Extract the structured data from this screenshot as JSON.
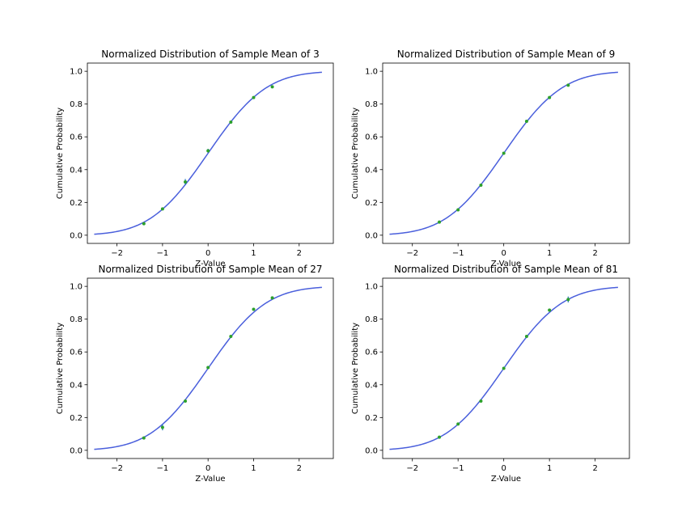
{
  "chart_data": [
    {
      "type": "line",
      "title": "Normalized Distribution of Sample Mean of 3",
      "xlabel": "Z-Value",
      "ylabel": "Cumulative Probability",
      "xlim": [
        -2.65,
        2.75
      ],
      "ylim": [
        -0.05,
        1.05
      ],
      "xticks": [
        -2,
        -1,
        0,
        1,
        2
      ],
      "xtick_labels": [
        "−2",
        "−1",
        "0",
        "1",
        "2"
      ],
      "yticks": [
        0.0,
        0.2,
        0.4,
        0.6,
        0.8,
        1.0
      ],
      "ytick_labels": [
        "0.0",
        "0.2",
        "0.4",
        "0.6",
        "0.8",
        "1.0"
      ],
      "grid": false,
      "series": [
        {
          "kind": "cdf-curve",
          "x_range": [
            -2.5,
            2.5
          ]
        },
        {
          "kind": "points",
          "x": [
            -1.41,
            -1.0,
            -0.5,
            0.0,
            0.5,
            1.0,
            1.41
          ],
          "y": [
            0.07,
            0.16,
            0.325,
            0.515,
            0.69,
            0.84,
            0.905
          ],
          "err": [
            0.008,
            0.005,
            0.018,
            0.012,
            0.005,
            0.006,
            0.005
          ]
        }
      ]
    },
    {
      "type": "line",
      "title": "Normalized Distribution of Sample Mean of 9",
      "xlabel": "Z-Value",
      "ylabel": "Cumulative Probability",
      "xlim": [
        -2.65,
        2.75
      ],
      "ylim": [
        -0.05,
        1.05
      ],
      "xticks": [
        -2,
        -1,
        0,
        1,
        2
      ],
      "xtick_labels": [
        "−2",
        "−1",
        "0",
        "1",
        "2"
      ],
      "yticks": [
        0.0,
        0.2,
        0.4,
        0.6,
        0.8,
        1.0
      ],
      "ytick_labels": [
        "0.0",
        "0.2",
        "0.4",
        "0.6",
        "0.8",
        "1.0"
      ],
      "grid": false,
      "series": [
        {
          "kind": "cdf-curve",
          "x_range": [
            -2.5,
            2.5
          ]
        },
        {
          "kind": "points",
          "x": [
            -1.41,
            -1.0,
            -0.5,
            0.0,
            0.5,
            1.0,
            1.41
          ],
          "y": [
            0.08,
            0.155,
            0.305,
            0.5,
            0.695,
            0.84,
            0.915
          ],
          "err": [
            0.004,
            0.004,
            0.006,
            0.005,
            0.005,
            0.004,
            0.008
          ]
        }
      ]
    },
    {
      "type": "line",
      "title": "Normalized Distribution of Sample Mean of 27",
      "xlabel": "Z-Value",
      "ylabel": "Cumulative Probability",
      "xlim": [
        -2.65,
        2.75
      ],
      "ylim": [
        -0.05,
        1.05
      ],
      "xticks": [
        -2,
        -1,
        0,
        1,
        2
      ],
      "xtick_labels": [
        "−2",
        "−1",
        "0",
        "1",
        "2"
      ],
      "yticks": [
        0.0,
        0.2,
        0.4,
        0.6,
        0.8,
        1.0
      ],
      "ytick_labels": [
        "0.0",
        "0.2",
        "0.4",
        "0.6",
        "0.8",
        "1.0"
      ],
      "grid": false,
      "series": [
        {
          "kind": "cdf-curve",
          "x_range": [
            -2.5,
            2.5
          ]
        },
        {
          "kind": "points",
          "x": [
            -1.41,
            -1.0,
            -0.5,
            0.0,
            0.5,
            1.0,
            1.41
          ],
          "y": [
            0.075,
            0.14,
            0.3,
            0.505,
            0.695,
            0.86,
            0.93
          ],
          "err": [
            0.006,
            0.018,
            0.006,
            0.006,
            0.006,
            0.007,
            0.006
          ]
        }
      ]
    },
    {
      "type": "line",
      "title": "Normalized Distribution of Sample Mean of 81",
      "xlabel": "Z-Value",
      "ylabel": "Cumulative Probability",
      "xlim": [
        -2.65,
        2.75
      ],
      "ylim": [
        -0.05,
        1.05
      ],
      "xticks": [
        -2,
        -1,
        0,
        1,
        2
      ],
      "xtick_labels": [
        "−2",
        "−1",
        "0",
        "1",
        "2"
      ],
      "yticks": [
        0.0,
        0.2,
        0.4,
        0.6,
        0.8,
        1.0
      ],
      "ytick_labels": [
        "0.0",
        "0.2",
        "0.4",
        "0.6",
        "0.8",
        "1.0"
      ],
      "grid": false,
      "series": [
        {
          "kind": "cdf-curve",
          "x_range": [
            -2.5,
            2.5
          ]
        },
        {
          "kind": "points",
          "x": [
            -1.41,
            -1.0,
            -0.5,
            0.0,
            0.5,
            1.0,
            1.41
          ],
          "y": [
            0.08,
            0.16,
            0.3,
            0.5,
            0.695,
            0.855,
            0.92
          ],
          "err": [
            0.004,
            0.005,
            0.006,
            0.005,
            0.005,
            0.006,
            0.018
          ]
        }
      ]
    }
  ],
  "colors": {
    "curve": "#4a5fdc",
    "points": "#2ca02c",
    "errorbars": "#1f77b4",
    "axes": "#000000"
  }
}
